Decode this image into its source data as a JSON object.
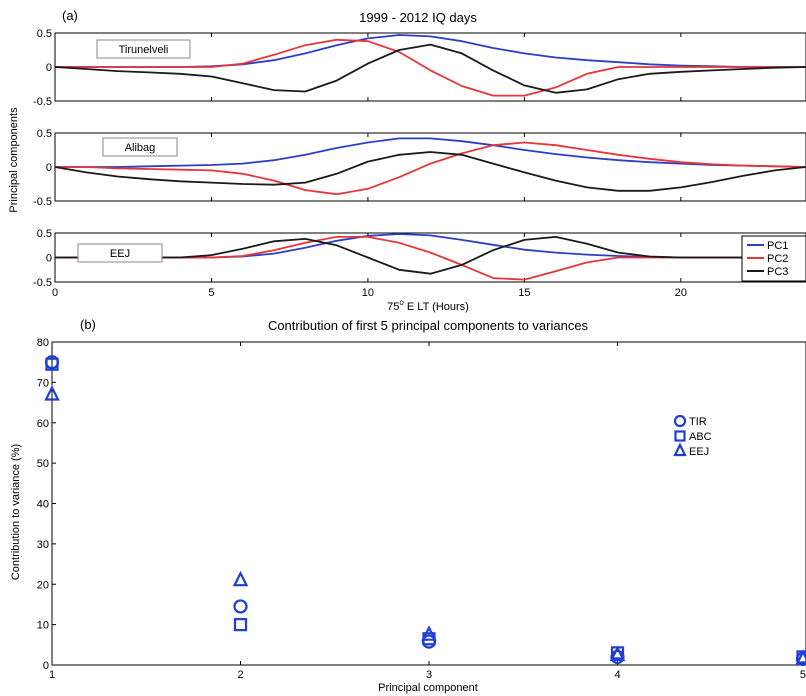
{
  "chart_data": [
    {
      "type": "line",
      "panel_label": "(a)",
      "title": "1999 - 2012 IQ days",
      "xlabel": "75° E LT (Hours)",
      "xlabel_parts": {
        "value": "75",
        "sup": "o",
        "rest": " E LT (Hours)"
      },
      "ylabel": "Principal components",
      "xlim": [
        0,
        24
      ],
      "xticks": [
        0,
        5,
        10,
        15,
        20
      ],
      "ylim": [
        -0.5,
        0.5
      ],
      "yticks": [
        -0.5,
        0,
        0.5
      ],
      "ytick_labels": [
        "-0.5",
        "0",
        "0.5"
      ],
      "legend": {
        "position": "right",
        "entries": [
          "PC1",
          "PC2",
          "PC3"
        ]
      },
      "colors": {
        "PC1": "#2b3fc4",
        "PC2": "#e8353a",
        "PC3": "#1a1a1a"
      },
      "x": [
        0,
        1,
        2,
        3,
        4,
        5,
        6,
        7,
        8,
        9,
        10,
        11,
        12,
        13,
        14,
        15,
        16,
        17,
        18,
        19,
        20,
        21,
        22,
        23,
        24
      ],
      "subplots": [
        {
          "name": "Tirunelveli",
          "series": [
            {
              "name": "PC1",
              "values": [
                0,
                0,
                0,
                0,
                0,
                0.01,
                0.04,
                0.1,
                0.2,
                0.32,
                0.42,
                0.47,
                0.45,
                0.38,
                0.28,
                0.2,
                0.14,
                0.1,
                0.07,
                0.04,
                0.02,
                0.01,
                0,
                0,
                0
              ]
            },
            {
              "name": "PC2",
              "values": [
                0,
                0,
                0,
                0,
                0,
                0,
                0.05,
                0.18,
                0.32,
                0.4,
                0.38,
                0.22,
                -0.05,
                -0.28,
                -0.42,
                -0.42,
                -0.3,
                -0.1,
                0,
                0,
                0,
                0,
                0,
                0,
                0
              ]
            },
            {
              "name": "PC3",
              "values": [
                0,
                -0.03,
                -0.06,
                -0.08,
                -0.1,
                -0.14,
                -0.24,
                -0.34,
                -0.36,
                -0.2,
                0.05,
                0.25,
                0.33,
                0.2,
                -0.05,
                -0.27,
                -0.38,
                -0.33,
                -0.18,
                -0.1,
                -0.07,
                -0.05,
                -0.03,
                -0.01,
                0
              ]
            }
          ]
        },
        {
          "name": "Alibag",
          "series": [
            {
              "name": "PC1",
              "values": [
                0,
                0,
                0,
                0.01,
                0.02,
                0.03,
                0.05,
                0.1,
                0.18,
                0.28,
                0.36,
                0.42,
                0.42,
                0.38,
                0.32,
                0.25,
                0.19,
                0.14,
                0.1,
                0.07,
                0.05,
                0.03,
                0.02,
                0.01,
                0
              ]
            },
            {
              "name": "PC2",
              "values": [
                0,
                0,
                -0.02,
                -0.03,
                -0.04,
                -0.05,
                -0.1,
                -0.2,
                -0.34,
                -0.4,
                -0.32,
                -0.15,
                0.05,
                0.2,
                0.32,
                0.36,
                0.32,
                0.25,
                0.18,
                0.12,
                0.07,
                0.04,
                0.02,
                0.01,
                0
              ]
            },
            {
              "name": "PC3",
              "values": [
                0,
                -0.08,
                -0.14,
                -0.18,
                -0.21,
                -0.23,
                -0.25,
                -0.26,
                -0.23,
                -0.1,
                0.08,
                0.18,
                0.22,
                0.18,
                0.05,
                -0.08,
                -0.2,
                -0.3,
                -0.35,
                -0.35,
                -0.3,
                -0.22,
                -0.13,
                -0.05,
                0
              ]
            }
          ]
        },
        {
          "name": "EEJ",
          "series": [
            {
              "name": "PC1",
              "values": [
                0,
                0,
                0,
                0,
                0,
                0,
                0.02,
                0.08,
                0.2,
                0.34,
                0.44,
                0.48,
                0.45,
                0.36,
                0.26,
                0.16,
                0.1,
                0.06,
                0.03,
                0.01,
                0,
                0,
                0,
                0,
                0
              ]
            },
            {
              "name": "PC2",
              "values": [
                0,
                0,
                0,
                0,
                0,
                0,
                0.03,
                0.15,
                0.3,
                0.42,
                0.42,
                0.3,
                0.1,
                -0.15,
                -0.42,
                -0.45,
                -0.28,
                -0.1,
                0,
                0,
                0,
                0,
                0,
                0,
                0
              ]
            },
            {
              "name": "PC3",
              "values": [
                0,
                0,
                0,
                0,
                0,
                0.05,
                0.18,
                0.33,
                0.38,
                0.25,
                0,
                -0.25,
                -0.33,
                -0.15,
                0.15,
                0.36,
                0.42,
                0.28,
                0.1,
                0.02,
                0,
                0,
                0,
                0,
                0
              ]
            }
          ]
        }
      ]
    },
    {
      "type": "scatter",
      "panel_label": "(b)",
      "title": "Contribution of first 5 principal components to variances",
      "xlabel": "Principal component",
      "ylabel": "Contribution to variance (%)",
      "xlim": [
        1,
        5
      ],
      "xticks": [
        1,
        2,
        3,
        4,
        5
      ],
      "ylim": [
        0,
        80
      ],
      "yticks": [
        0,
        10,
        20,
        30,
        40,
        50,
        60,
        70,
        80
      ],
      "legend": {
        "position": "top-right",
        "entries": [
          "TIR",
          "ABC",
          "EEJ"
        ]
      },
      "marker_color": "#1f3fd6",
      "series": [
        {
          "name": "TIR",
          "marker": "circle",
          "x": [
            1,
            2,
            3,
            4,
            5
          ],
          "values": [
            75,
            14.5,
            5.8,
            2,
            1.5
          ]
        },
        {
          "name": "ABC",
          "marker": "square",
          "x": [
            1,
            2,
            3,
            4,
            5
          ],
          "values": [
            74.5,
            10,
            6.5,
            3,
            2
          ]
        },
        {
          "name": "EEJ",
          "marker": "triangle",
          "x": [
            1,
            2,
            3,
            4,
            5
          ],
          "values": [
            67,
            21,
            7.5,
            2.5,
            1.5
          ]
        }
      ]
    }
  ]
}
